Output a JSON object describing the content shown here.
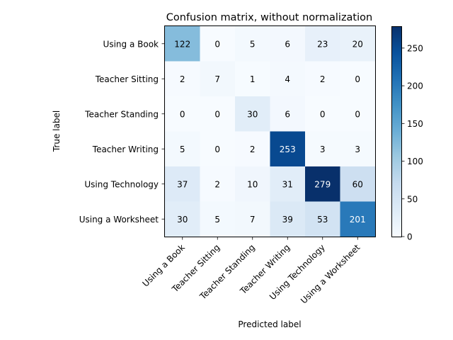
{
  "chart_data": {
    "type": "heatmap",
    "title": "Confusion matrix, without normalization",
    "xlabel": "Predicted label",
    "ylabel": "True label",
    "row_labels": [
      "Using a Book",
      "Teacher Sitting",
      "Teacher Standing",
      "Teacher Writing",
      "Using Technology",
      "Using a Worksheet"
    ],
    "col_labels": [
      "Using a Book",
      "Teacher Sitting",
      "Teacher Standing",
      "Teacher Writing",
      "Using Technology",
      "Using a Worksheet"
    ],
    "values": [
      [
        122,
        0,
        5,
        6,
        23,
        20
      ],
      [
        2,
        7,
        1,
        4,
        2,
        0
      ],
      [
        0,
        0,
        30,
        6,
        0,
        0
      ],
      [
        5,
        0,
        2,
        253,
        3,
        3
      ],
      [
        37,
        2,
        10,
        31,
        279,
        60
      ],
      [
        30,
        5,
        7,
        39,
        53,
        201
      ]
    ],
    "colormap": "Blues",
    "vmin": 0,
    "vmax": 279,
    "colorbar_ticks": [
      "0",
      "50",
      "100",
      "150",
      "200",
      "250"
    ],
    "colorbar_tick_values": [
      0,
      50,
      100,
      150,
      200,
      250
    ],
    "grid": false
  }
}
